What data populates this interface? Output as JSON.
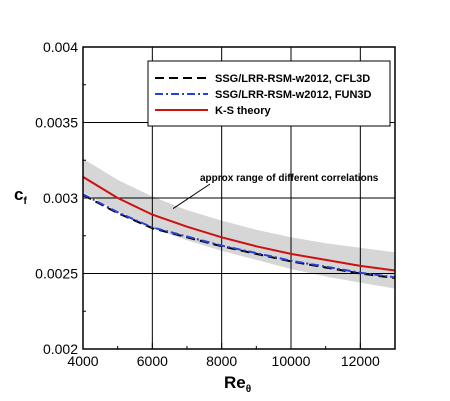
{
  "chart_data": {
    "type": "line",
    "xlabel": "Re",
    "xlabel_subscript": "θ",
    "ylabel": "c",
    "ylabel_subscript": "f",
    "xlim": [
      4000,
      13000
    ],
    "ylim": [
      0.002,
      0.004
    ],
    "x_ticks": [
      4000,
      6000,
      8000,
      10000,
      12000
    ],
    "x_tick_labels": [
      "4000",
      "6000",
      "8000",
      "10000",
      "12000"
    ],
    "y_ticks": [
      0.002,
      0.0025,
      0.003,
      0.0035,
      0.004
    ],
    "y_tick_labels": [
      "0.002",
      "0.0025",
      "0.003",
      "0.0035",
      "0.004"
    ],
    "grid": true,
    "legend_position": "top-right",
    "series": [
      {
        "name": "SSG/LRR-RSM-w2012, CFL3D",
        "style": "dashed",
        "color": "#000000",
        "x": [
          4000,
          5000,
          6000,
          7000,
          8000,
          9000,
          10000,
          11000,
          12000,
          13000
        ],
        "y": [
          0.00302,
          0.0029,
          0.0028,
          0.00274,
          0.00268,
          0.00263,
          0.00258,
          0.00254,
          0.0025,
          0.00247
        ]
      },
      {
        "name": "SSG/LRR-RSM-w2012, FUN3D",
        "style": "dashdot",
        "color": "#2a3fd8",
        "x": [
          4000,
          5000,
          6000,
          7000,
          8000,
          9000,
          10000,
          11000,
          12000,
          13000
        ],
        "y": [
          0.003025,
          0.002905,
          0.002805,
          0.002745,
          0.002685,
          0.002635,
          0.002585,
          0.002545,
          0.002505,
          0.002475
        ]
      },
      {
        "name": "K-S theory",
        "style": "solid",
        "color": "#cc1111",
        "x": [
          4000,
          5000,
          6000,
          7000,
          8000,
          9000,
          10000,
          11000,
          12000,
          13000
        ],
        "y": [
          0.00314,
          0.003,
          0.00289,
          0.00281,
          0.00274,
          0.00268,
          0.00263,
          0.00259,
          0.00255,
          0.00252
        ]
      }
    ],
    "band": {
      "color": "#d6d6d6",
      "x": [
        4000,
        5000,
        6000,
        7000,
        8000,
        9000,
        10000,
        11000,
        12000,
        13000
      ],
      "upper": [
        0.00326,
        0.00312,
        0.00301,
        0.00292,
        0.00285,
        0.00279,
        0.00274,
        0.0027,
        0.00267,
        0.00264
      ],
      "lower": [
        0.00304,
        0.00291,
        0.0028,
        0.00272,
        0.00265,
        0.00259,
        0.00253,
        0.00248,
        0.00244,
        0.0024
      ]
    },
    "annotation": {
      "text": "approx range of different correlations",
      "arrow_target": [
        6600,
        0.00293
      ]
    }
  }
}
